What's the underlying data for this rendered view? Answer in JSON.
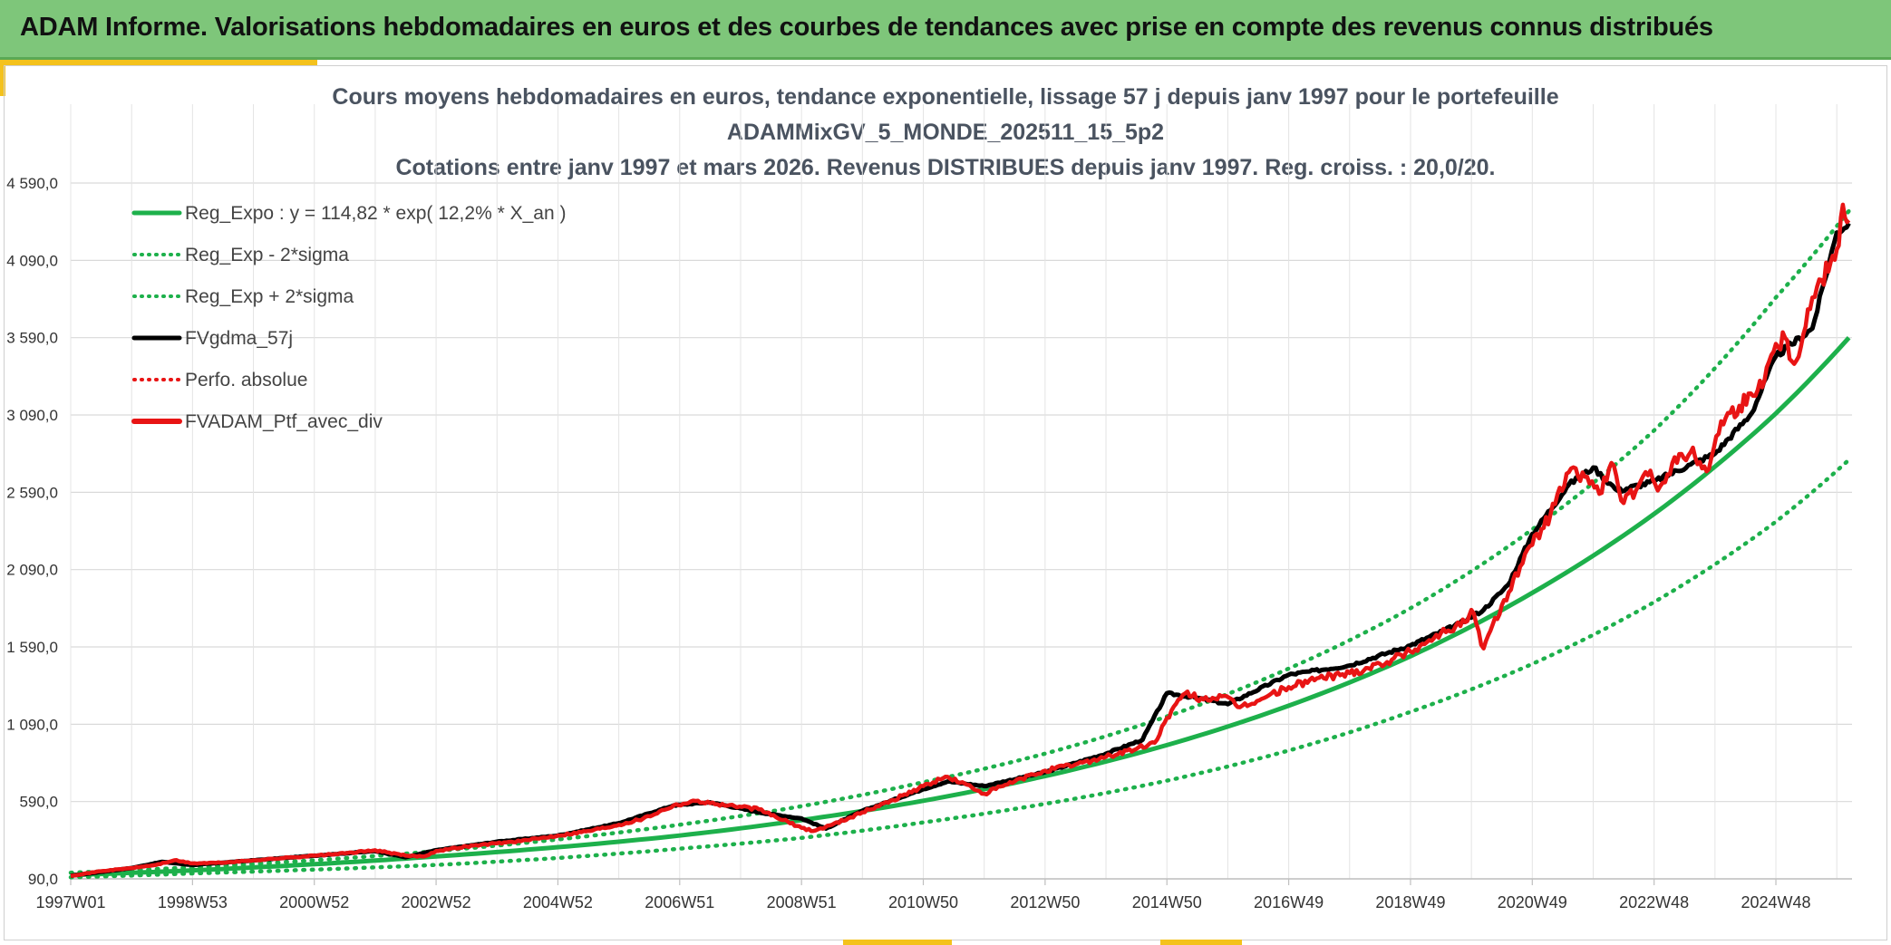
{
  "header": {
    "title": "ADAM Informe. Valorisations hebdomadaires en euros et des courbes de tendances avec prise en compte des revenus connus distribués"
  },
  "colors": {
    "banner": "#7ec67a",
    "accent": "#f4c21c",
    "trend": "#1db04b",
    "perf": "#e81414",
    "smooth": "#000000",
    "grid": "#d9d9d9"
  },
  "chart_data": {
    "type": "line",
    "title_lines": [
      "Cours moyens hebdomadaires en euros, tendance exponentielle, lissage 57 j depuis janv 1997 pour le portefeuille",
      "ADAMMixGV_5_MONDE_202511_15_5p2",
      "Cotations entre janv 1997 et mars 2026. Revenus DISTRIBUES depuis janv 1997. Reg. croiss. : 20,0/20."
    ],
    "xlabel": "",
    "ylabel": "",
    "x_range": [
      1997.0,
      2026.25
    ],
    "ylim": [
      90,
      5100
    ],
    "y_ticks": [
      {
        "value": 90,
        "label": "90,0"
      },
      {
        "value": 590,
        "label": "590,0"
      },
      {
        "value": 1090,
        "label": "1 090,0"
      },
      {
        "value": 1590,
        "label": "1 590,0"
      },
      {
        "value": 2090,
        "label": "2 090,0"
      },
      {
        "value": 2590,
        "label": "2 590,0"
      },
      {
        "value": 3090,
        "label": "3 090,0"
      },
      {
        "value": 3590,
        "label": "3 590,0"
      },
      {
        "value": 4090,
        "label": "4 090,0"
      },
      {
        "value": 4590,
        "label": "4 590,0"
      }
    ],
    "x_ticks": [
      {
        "value": 1997.0,
        "label": "1997W01"
      },
      {
        "value": 1999.0,
        "label": "1998W53"
      },
      {
        "value": 2001.0,
        "label": "2000W52"
      },
      {
        "value": 2003.0,
        "label": "2002W52"
      },
      {
        "value": 2005.0,
        "label": "2004W52"
      },
      {
        "value": 2007.0,
        "label": "2006W51"
      },
      {
        "value": 2009.0,
        "label": "2008W51"
      },
      {
        "value": 2011.0,
        "label": "2010W50"
      },
      {
        "value": 2013.0,
        "label": "2012W50"
      },
      {
        "value": 2015.0,
        "label": "2014W50"
      },
      {
        "value": 2017.0,
        "label": "2016W49"
      },
      {
        "value": 2019.0,
        "label": "2018W49"
      },
      {
        "value": 2021.0,
        "label": "2020W49"
      },
      {
        "value": 2023.0,
        "label": "2022W48"
      },
      {
        "value": 2025.0,
        "label": "2024W48"
      }
    ],
    "legend_position": "top-left",
    "legend": [
      {
        "name": "Reg_Expo : y = 114,82 * exp( 12,2% *  X_an )",
        "color": "#1db04b",
        "style": "solid",
        "width": 5
      },
      {
        "name": "Reg_Exp - 2*sigma",
        "color": "#1db04b",
        "style": "dotted",
        "width": 4
      },
      {
        "name": "Reg_Exp + 2*sigma",
        "color": "#1db04b",
        "style": "dotted",
        "width": 4
      },
      {
        "name": "FVgdma_57j",
        "color": "#000000",
        "style": "solid",
        "width": 5
      },
      {
        "name": "Perfo. absolue",
        "color": "#e81414",
        "style": "dotted",
        "width": 4
      },
      {
        "name": "FVADAM_Ptf_avec_div",
        "color": "#e81414",
        "style": "solid",
        "width": 6
      }
    ],
    "series": [
      {
        "name": "Reg_Expo : y = 114,82 * exp( 12,2% *  X_an )",
        "x": [
          1997,
          1999,
          2001,
          2003,
          2005,
          2007,
          2009,
          2011,
          2013,
          2015,
          2017,
          2019,
          2021,
          2023,
          2025,
          2026.2
        ],
        "values": [
          115,
          145,
          185,
          235,
          295,
          370,
          470,
          595,
          755,
          955,
          1210,
          1530,
          1940,
          2450,
          3100,
          3590
        ]
      },
      {
        "name": "Reg_Exp - 2*sigma",
        "x": [
          1997,
          1999,
          2001,
          2003,
          2005,
          2007,
          2009,
          2011,
          2013,
          2015,
          2017,
          2019,
          2021,
          2023,
          2025,
          2026.2
        ],
        "values": [
          100,
          125,
          150,
          180,
          225,
          285,
          355,
          455,
          575,
          725,
          920,
          1170,
          1480,
          1880,
          2400,
          2800
        ]
      },
      {
        "name": "Reg_Exp + 2*sigma",
        "x": [
          1997,
          1999,
          2001,
          2003,
          2005,
          2007,
          2009,
          2011,
          2013,
          2015,
          2017,
          2019,
          2021,
          2023,
          2025,
          2026.2
        ],
        "values": [
          130,
          165,
          210,
          270,
          345,
          440,
          560,
          715,
          900,
          1140,
          1450,
          1840,
          2350,
          2990,
          3850,
          4410
        ]
      },
      {
        "name": "FVgdma_57j",
        "x": [
          1997,
          1998,
          1998.5,
          1999,
          2000,
          2001,
          2002,
          2002.5,
          2003,
          2004,
          2005,
          2006,
          2006.9,
          2007.5,
          2008.3,
          2009,
          2009.4,
          2010,
          2011,
          2011.4,
          2012,
          2013,
          2014,
          2014.6,
          2015,
          2015.5,
          2016,
          2017,
          2018,
          2019,
          2019.8,
          2020.2,
          2020.6,
          2021,
          2021.6,
          2022,
          2022.4,
          2023,
          2023.6,
          2024,
          2024.6,
          2025,
          2025.6,
          2026,
          2026.2
        ],
        "values": [
          110,
          160,
          200,
          180,
          210,
          240,
          270,
          230,
          275,
          330,
          370,
          450,
          565,
          585,
          520,
          480,
          415,
          530,
          670,
          720,
          690,
          780,
          900,
          990,
          1290,
          1260,
          1220,
          1410,
          1470,
          1600,
          1740,
          1830,
          1990,
          2320,
          2640,
          2750,
          2600,
          2660,
          2770,
          2840,
          3100,
          3470,
          3650,
          4270,
          4330
        ]
      },
      {
        "name": "FVADAM_Ptf_avec_div",
        "x": [
          1997,
          1997.5,
          1998,
          1998.4,
          1998.7,
          1999,
          1999.5,
          2000,
          2000.5,
          2001,
          2001.5,
          2002,
          2002.5,
          2002.8,
          2003,
          2003.5,
          2004,
          2004.5,
          2005,
          2005.5,
          2006,
          2006.4,
          2006.9,
          2007.3,
          2007.5,
          2007.9,
          2008.3,
          2008.7,
          2009,
          2009.2,
          2009.5,
          2010,
          2010.5,
          2011,
          2011.4,
          2011.8,
          2012,
          2012.5,
          2013,
          2013.5,
          2014,
          2014.5,
          2014.8,
          2015,
          2015.3,
          2015.6,
          2015.9,
          2016.2,
          2016.6,
          2017,
          2017.5,
          2018,
          2018.5,
          2019,
          2019.5,
          2019.9,
          2020.0,
          2020.2,
          2020.5,
          2020.8,
          2021,
          2021.3,
          2021.6,
          2021.9,
          2022.1,
          2022.3,
          2022.5,
          2022.7,
          2022.9,
          2023.1,
          2023.3,
          2023.6,
          2023.9,
          2024.1,
          2024.4,
          2024.7,
          2025.0,
          2025.15,
          2025.3,
          2025.6,
          2025.9,
          2026.0,
          2026.1,
          2026.2
        ],
        "values": [
          110,
          140,
          160,
          180,
          210,
          190,
          195,
          210,
          225,
          240,
          255,
          275,
          240,
          235,
          270,
          300,
          320,
          340,
          370,
          400,
          440,
          480,
          565,
          595,
          580,
          560,
          540,
          470,
          420,
          400,
          440,
          520,
          600,
          690,
          750,
          680,
          640,
          720,
          790,
          830,
          880,
          930,
          970,
          1130,
          1290,
          1250,
          1270,
          1200,
          1260,
          1330,
          1390,
          1420,
          1480,
          1560,
          1680,
          1750,
          1830,
          1580,
          1860,
          2110,
          2250,
          2450,
          2720,
          2690,
          2580,
          2780,
          2520,
          2600,
          2700,
          2630,
          2780,
          2850,
          2740,
          3050,
          3150,
          3250,
          3550,
          3590,
          3420,
          3850,
          4080,
          4160,
          4450,
          4350
        ]
      }
    ]
  }
}
